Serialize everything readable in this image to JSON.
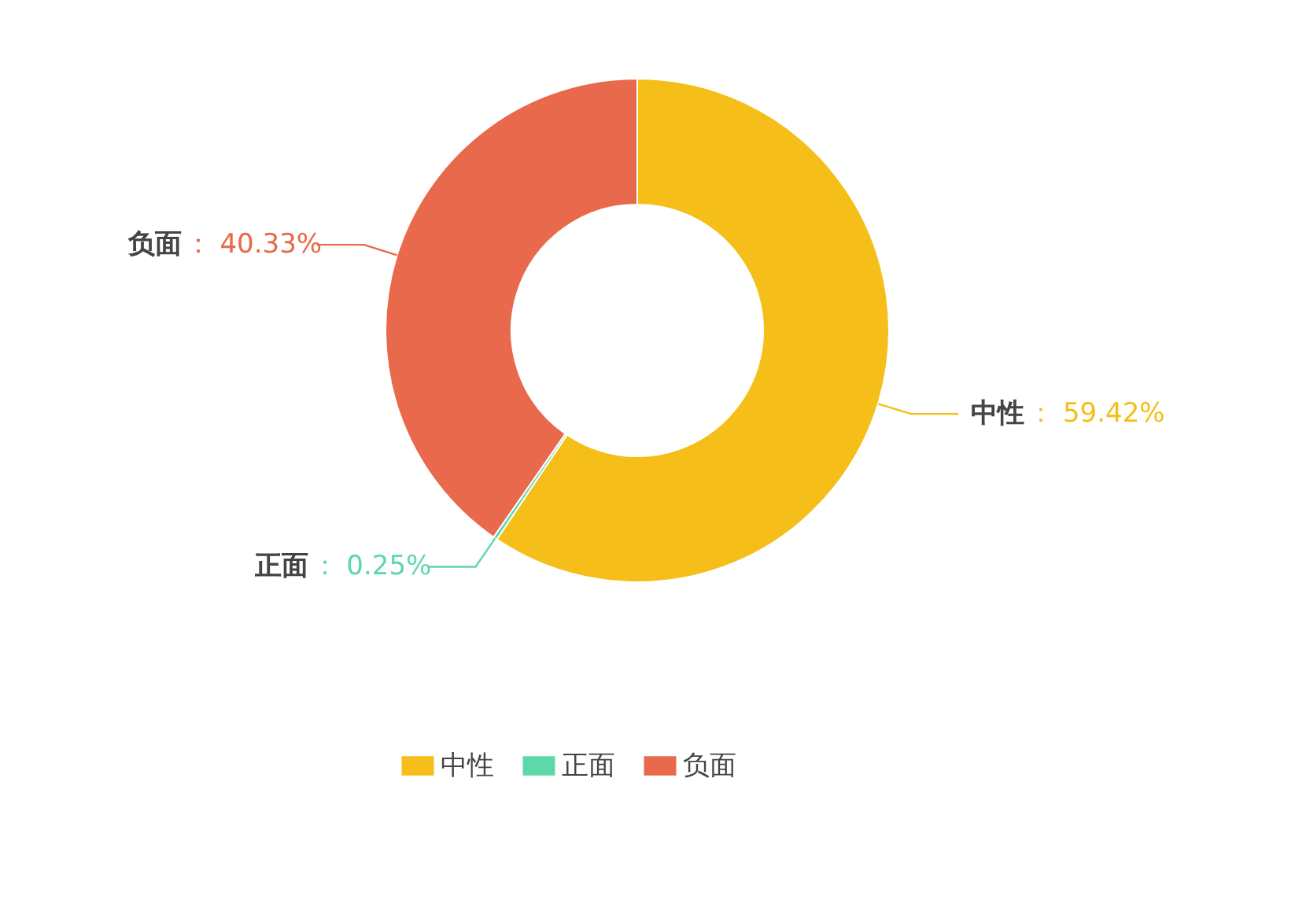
{
  "chart_data": {
    "type": "donut",
    "categories": [
      "中性",
      "正面",
      "负面"
    ],
    "values": [
      59.42,
      0.25,
      40.33
    ],
    "colors": [
      "#f5be19",
      "#5dd8a8",
      "#e8694b"
    ],
    "value_labels": [
      "： 59.42%",
      "： 0.25%",
      "： 40.33%"
    ],
    "legend": "bottom"
  }
}
